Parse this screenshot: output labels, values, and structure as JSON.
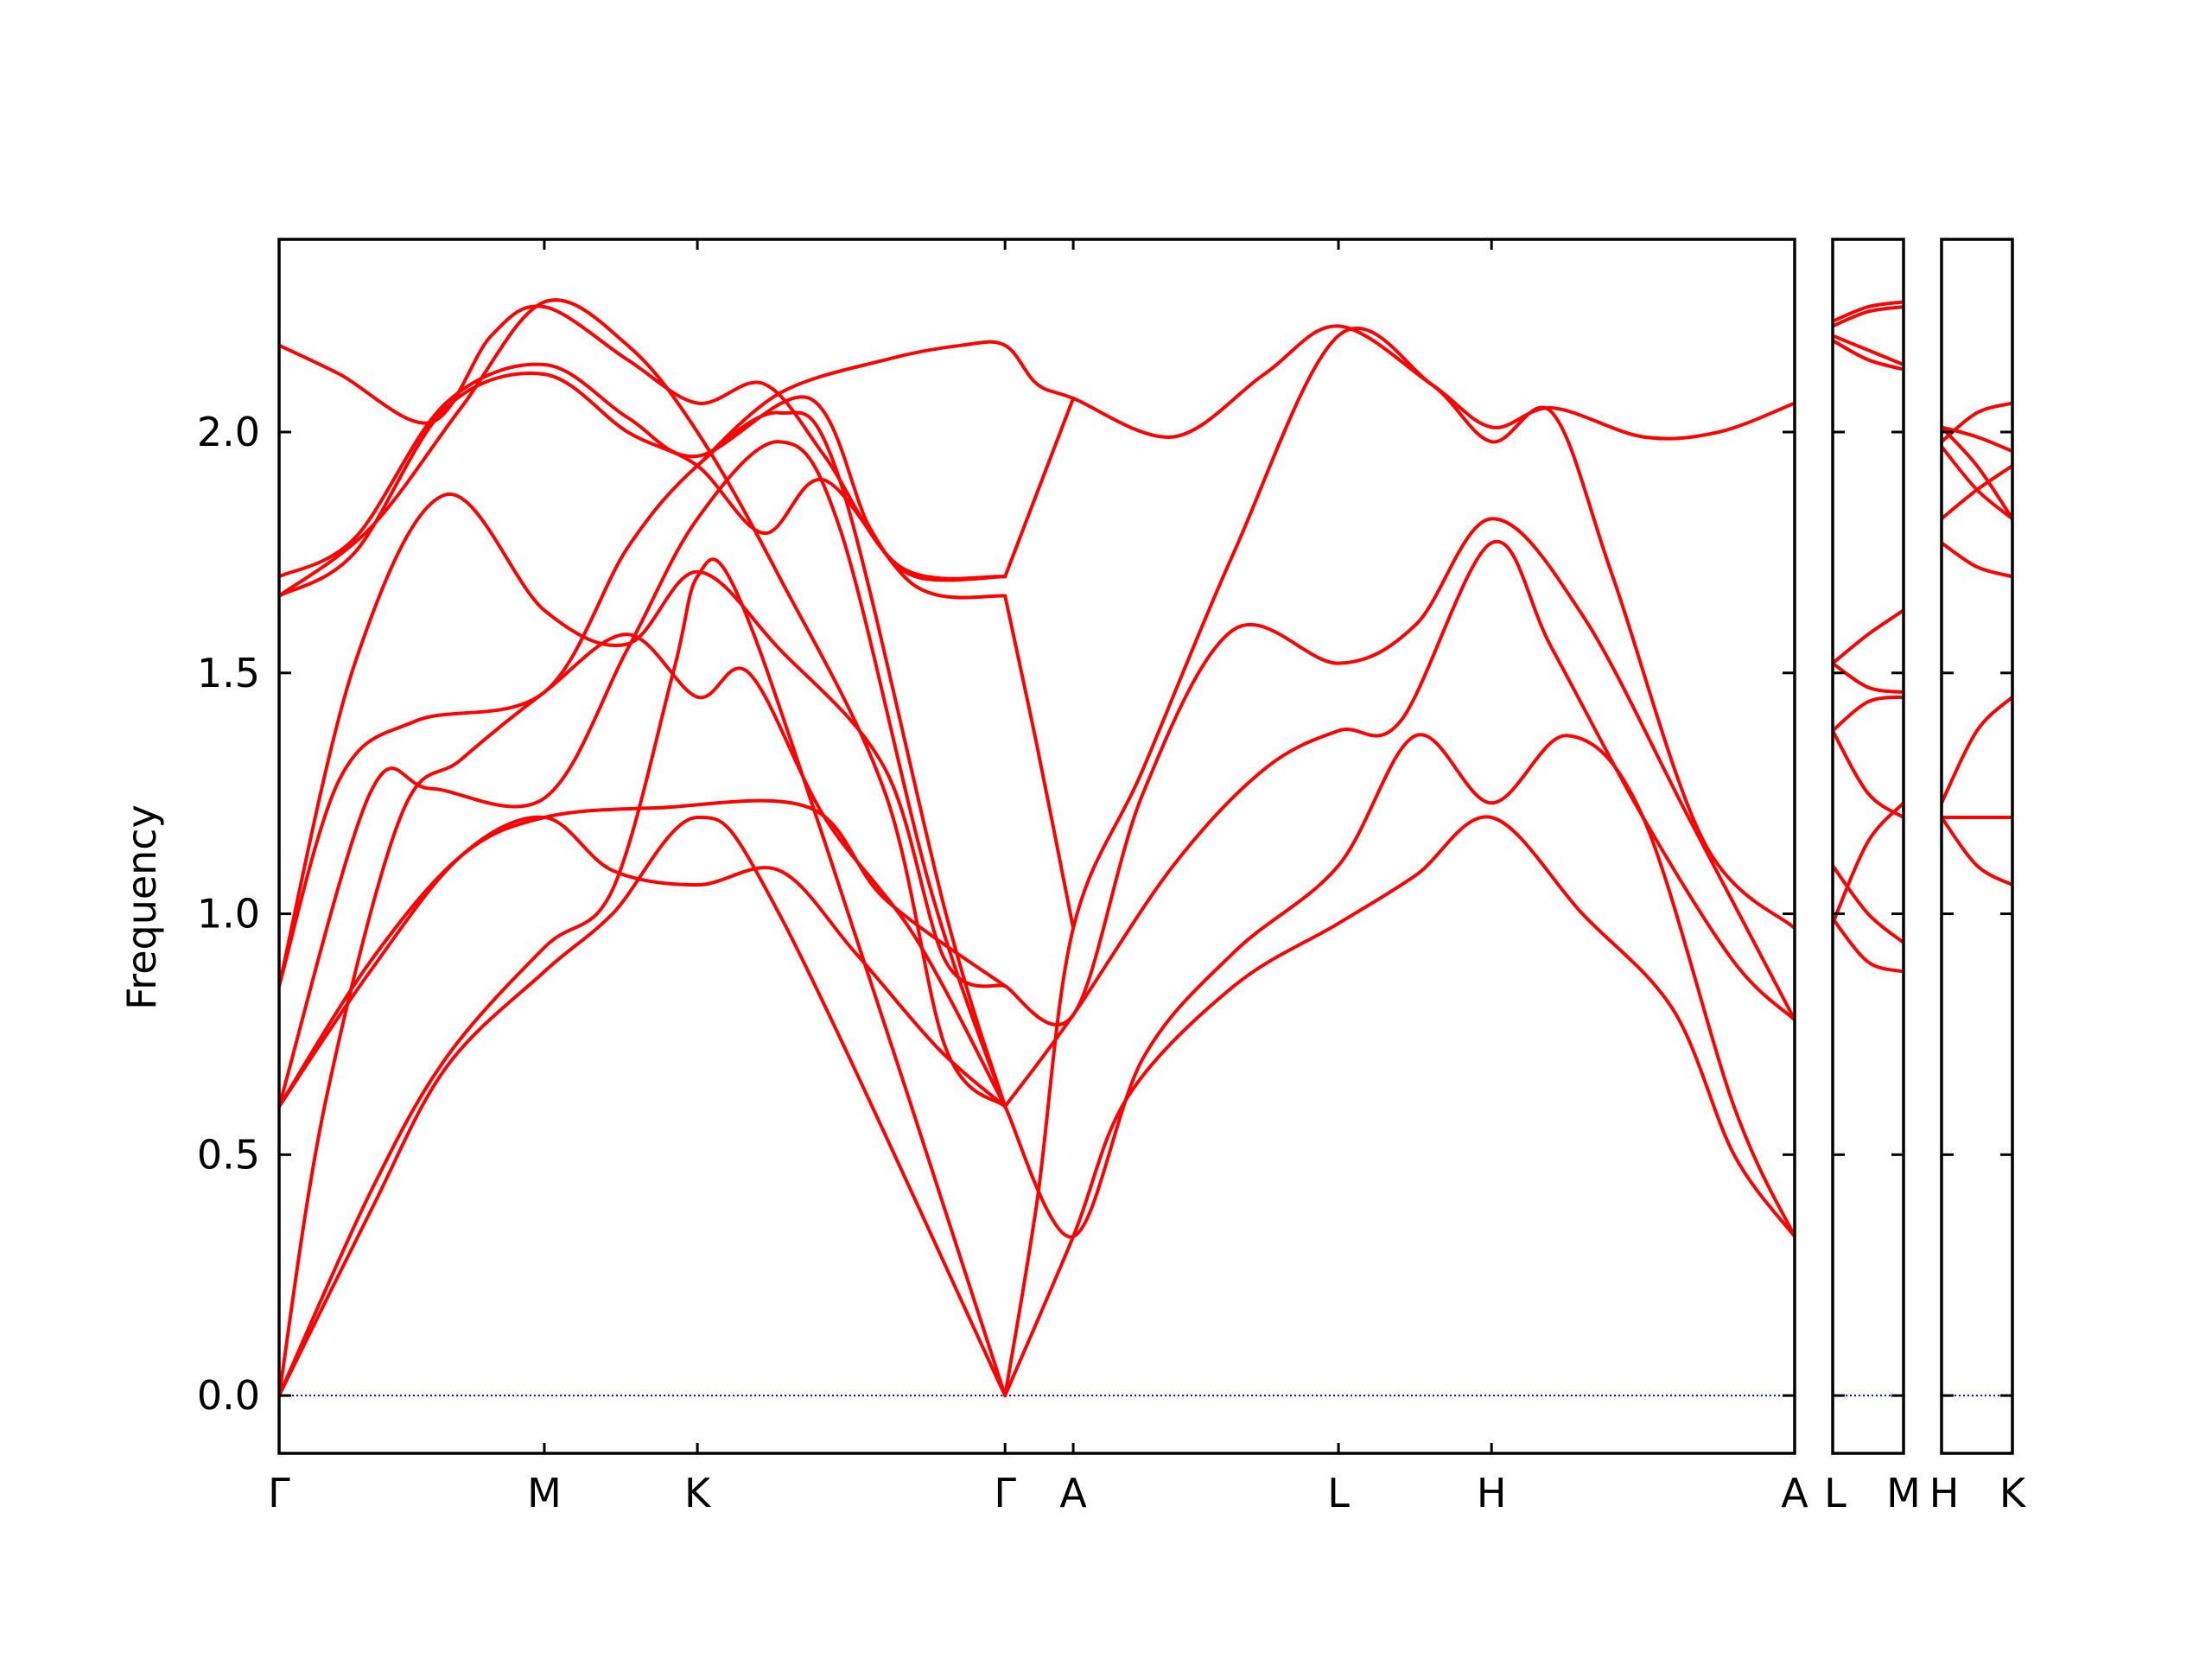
{
  "chart_data": {
    "type": "line",
    "ylabel": "Frequency",
    "ylim": [
      -0.12,
      2.4
    ],
    "yticks": [
      {
        "value": 0.0,
        "label": "0.0"
      },
      {
        "value": 0.5,
        "label": "0.5"
      },
      {
        "value": 1.0,
        "label": "1.0"
      },
      {
        "value": 1.5,
        "label": "1.5"
      },
      {
        "value": 2.0,
        "label": "2.0"
      }
    ],
    "zero_line_color": "#0000ff",
    "band_color": "#ff0000",
    "panels": [
      {
        "xlim": [
          0,
          10
        ],
        "x_tick_labels": [
          {
            "x": 0,
            "label": "Γ"
          },
          {
            "x": 1.75,
            "label": "M"
          },
          {
            "x": 2.76,
            "label": "K"
          },
          {
            "x": 4.79,
            "label": "Γ"
          },
          {
            "x": 5.24,
            "label": "A"
          },
          {
            "x": 6.99,
            "label": "L"
          },
          {
            "x": 8.0,
            "label": "H"
          },
          {
            "x": 10.0,
            "label": "A"
          }
        ],
        "bands": [
          [
            [
              0,
              0
            ],
            [
              0.6,
              0.38
            ],
            [
              1.1,
              0.68
            ],
            [
              1.75,
              0.88
            ],
            [
              2.2,
              1.0
            ],
            [
              2.76,
              1.2
            ],
            [
              3.3,
              1.0
            ],
            [
              4.79,
              0
            ]
          ],
          [
            [
              0,
              0
            ],
            [
              0.6,
              0.42
            ],
            [
              1.1,
              0.7
            ],
            [
              1.75,
              0.93
            ],
            [
              2.2,
              1.05
            ],
            [
              2.6,
              1.5
            ],
            [
              2.76,
              1.7
            ],
            [
              3.0,
              1.68
            ],
            [
              3.6,
              1.15
            ],
            [
              4.79,
              0
            ]
          ],
          [
            [
              0,
              0
            ],
            [
              0.3,
              0.6
            ],
            [
              0.8,
              1.2
            ],
            [
              1.2,
              1.32
            ],
            [
              1.75,
              1.46
            ],
            [
              2.3,
              1.58
            ],
            [
              2.76,
              1.45
            ],
            [
              3.1,
              1.5
            ],
            [
              3.6,
              1.2
            ],
            [
              4.2,
              0.95
            ],
            [
              4.79,
              0.6
            ]
          ],
          [
            [
              0,
              0.6
            ],
            [
              0.6,
              0.88
            ],
            [
              1.2,
              1.12
            ],
            [
              1.75,
              1.2
            ],
            [
              2.2,
              1.09
            ],
            [
              2.76,
              1.06
            ],
            [
              3.3,
              1.09
            ],
            [
              3.8,
              0.92
            ],
            [
              4.35,
              0.72
            ],
            [
              4.79,
              0.6
            ]
          ],
          [
            [
              0,
              0.6
            ],
            [
              0.6,
              0.9
            ],
            [
              1.2,
              1.12
            ],
            [
              1.75,
              1.2
            ],
            [
              2.5,
              1.22
            ],
            [
              3.5,
              1.22
            ],
            [
              4.0,
              1.03
            ],
            [
              4.79,
              0.85
            ]
          ],
          [
            [
              0,
              0.6
            ],
            [
              0.6,
              1.25
            ],
            [
              1.0,
              1.26
            ],
            [
              1.75,
              1.24
            ],
            [
              2.3,
              1.55
            ],
            [
              2.76,
              1.82
            ],
            [
              3.3,
              1.98
            ],
            [
              3.7,
              1.8
            ],
            [
              4.3,
              1.05
            ],
            [
              4.79,
              0.6
            ]
          ],
          [
            [
              0,
              0.85
            ],
            [
              0.4,
              1.28
            ],
            [
              0.9,
              1.4
            ],
            [
              1.75,
              1.46
            ],
            [
              2.3,
              1.76
            ],
            [
              2.76,
              1.93
            ],
            [
              3.3,
              2.04
            ],
            [
              3.7,
              1.9
            ],
            [
              4.4,
              1.0
            ],
            [
              4.79,
              0.6
            ]
          ],
          [
            [
              0,
              0.85
            ],
            [
              0.5,
              1.52
            ],
            [
              1.1,
              1.87
            ],
            [
              1.75,
              1.63
            ],
            [
              2.3,
              1.56
            ],
            [
              2.76,
              1.71
            ],
            [
              3.3,
              1.55
            ],
            [
              4.0,
              1.3
            ],
            [
              4.4,
              0.9
            ],
            [
              4.79,
              0.85
            ]
          ],
          [
            [
              0,
              1.66
            ],
            [
              0.5,
              1.75
            ],
            [
              1.1,
              2.05
            ],
            [
              1.75,
              2.12
            ],
            [
              2.3,
              2.0
            ],
            [
              2.76,
              1.93
            ],
            [
              3.2,
              1.79
            ],
            [
              3.6,
              1.9
            ],
            [
              4.2,
              1.68
            ],
            [
              4.79,
              1.66
            ]
          ],
          [
            [
              0,
              1.7
            ],
            [
              0.5,
              1.78
            ],
            [
              1.1,
              2.06
            ],
            [
              1.75,
              2.14
            ],
            [
              2.3,
              2.03
            ],
            [
              2.76,
              1.95
            ],
            [
              3.5,
              2.07
            ],
            [
              3.9,
              1.8
            ],
            [
              4.2,
              1.7
            ],
            [
              4.79,
              1.7
            ]
          ],
          [
            [
              0,
              2.18
            ],
            [
              0.4,
              2.12
            ],
            [
              1.0,
              2.02
            ],
            [
              1.4,
              2.2
            ],
            [
              1.75,
              2.26
            ],
            [
              2.3,
              2.15
            ],
            [
              2.76,
              2.06
            ],
            [
              3.2,
              2.1
            ],
            [
              3.6,
              1.95
            ],
            [
              4.1,
              1.72
            ],
            [
              4.79,
              1.7
            ]
          ],
          [
            [
              0,
              1.66
            ],
            [
              0.6,
              1.8
            ],
            [
              1.2,
              2.05
            ],
            [
              1.75,
              2.27
            ],
            [
              2.3,
              2.18
            ],
            [
              2.76,
              2.0
            ],
            [
              3.3,
              1.7
            ],
            [
              4.0,
              1.25
            ],
            [
              4.4,
              0.72
            ],
            [
              4.79,
              0.6
            ]
          ],
          [
            [
              2.76,
              1.93
            ],
            [
              3.3,
              2.08
            ],
            [
              4.0,
              2.15
            ],
            [
              4.5,
              2.18
            ],
            [
              4.79,
              2.18
            ],
            [
              5.0,
              2.1
            ],
            [
              5.24,
              2.07
            ],
            [
              5.9,
              1.99
            ],
            [
              6.5,
              2.12
            ],
            [
              6.99,
              2.22
            ],
            [
              7.6,
              2.1
            ],
            [
              8.0,
              2.01
            ],
            [
              8.4,
              2.05
            ],
            [
              9.0,
              1.99
            ],
            [
              9.5,
              2.0
            ],
            [
              10.0,
              2.06
            ]
          ],
          [
            [
              4.79,
              0
            ],
            [
              5.0,
              0.4
            ],
            [
              5.24,
              0.97
            ],
            [
              5.7,
              1.3
            ],
            [
              6.3,
              1.75
            ],
            [
              6.99,
              2.2
            ],
            [
              7.6,
              2.1
            ],
            [
              8.0,
              1.98
            ],
            [
              8.4,
              2.04
            ],
            [
              8.8,
              1.7
            ],
            [
              9.4,
              1.15
            ],
            [
              10.0,
              0.97
            ]
          ],
          [
            [
              4.79,
              1.7
            ],
            [
              5.24,
              2.07
            ]
          ],
          [
            [
              4.79,
              1.66
            ],
            [
              5.0,
              1.35
            ],
            [
              5.24,
              0.97
            ]
          ],
          [
            [
              4.79,
              0
            ],
            [
              5.24,
              0.33
            ],
            [
              5.6,
              0.62
            ],
            [
              6.3,
              0.85
            ],
            [
              6.99,
              0.98
            ],
            [
              7.5,
              1.08
            ],
            [
              8.0,
              1.2
            ],
            [
              8.6,
              1.0
            ],
            [
              9.2,
              0.8
            ],
            [
              9.6,
              0.5
            ],
            [
              10.0,
              0.33
            ]
          ],
          [
            [
              4.79,
              0.6
            ],
            [
              5.24,
              0.33
            ],
            [
              5.7,
              0.7
            ],
            [
              6.3,
              0.92
            ],
            [
              6.99,
              1.1
            ],
            [
              7.5,
              1.37
            ],
            [
              8.0,
              1.23
            ],
            [
              8.5,
              1.37
            ],
            [
              9.0,
              1.2
            ],
            [
              9.6,
              0.6
            ],
            [
              10.0,
              0.33
            ]
          ],
          [
            [
              4.79,
              0.6
            ],
            [
              5.24,
              0.79
            ],
            [
              5.9,
              1.1
            ],
            [
              6.5,
              1.3
            ],
            [
              6.99,
              1.38
            ],
            [
              7.4,
              1.4
            ],
            [
              8.0,
              1.77
            ],
            [
              8.4,
              1.55
            ],
            [
              9.0,
              1.2
            ],
            [
              9.6,
              0.9
            ],
            [
              10.0,
              0.78
            ]
          ],
          [
            [
              4.79,
              0.85
            ],
            [
              5.24,
              0.79
            ],
            [
              5.7,
              1.25
            ],
            [
              6.3,
              1.59
            ],
            [
              6.99,
              1.52
            ],
            [
              7.5,
              1.6
            ],
            [
              8.0,
              1.82
            ],
            [
              8.6,
              1.62
            ],
            [
              9.3,
              1.2
            ],
            [
              10.0,
              0.78
            ]
          ]
        ]
      },
      {
        "xlim": [
          0,
          1
        ],
        "x_tick_labels": [
          {
            "x": 0,
            "label": "L"
          },
          {
            "x": 1,
            "label": "M"
          }
        ],
        "bands": [
          [
            [
              0,
              0.98
            ],
            [
              0.5,
              1.15
            ],
            [
              1,
              1.23
            ]
          ],
          [
            [
              0,
              0.99
            ],
            [
              0.5,
              0.9
            ],
            [
              1,
              0.88
            ]
          ],
          [
            [
              0,
              1.1
            ],
            [
              0.5,
              1.0
            ],
            [
              1,
              0.94
            ]
          ],
          [
            [
              0,
              1.38
            ],
            [
              0.5,
              1.25
            ],
            [
              1,
              1.2
            ]
          ],
          [
            [
              0,
              1.38
            ],
            [
              0.5,
              1.44
            ],
            [
              1,
              1.45
            ]
          ],
          [
            [
              0,
              1.52
            ],
            [
              0.5,
              1.47
            ],
            [
              1,
              1.46
            ]
          ],
          [
            [
              0,
              1.52
            ],
            [
              0.5,
              1.58
            ],
            [
              1,
              1.63
            ]
          ],
          [
            [
              0,
              2.19
            ],
            [
              0.5,
              2.15
            ],
            [
              1,
              2.13
            ]
          ],
          [
            [
              0,
              2.2
            ],
            [
              0.5,
              2.17
            ],
            [
              1,
              2.14
            ]
          ],
          [
            [
              0,
              2.22
            ],
            [
              0.5,
              2.25
            ],
            [
              1,
              2.26
            ]
          ],
          [
            [
              0,
              2.23
            ],
            [
              0.5,
              2.26
            ],
            [
              1,
              2.27
            ]
          ]
        ]
      },
      {
        "xlim": [
          0,
          1
        ],
        "x_tick_labels": [
          {
            "x": 0,
            "label": "H"
          },
          {
            "x": 1,
            "label": "K"
          }
        ],
        "bands": [
          [
            [
              0,
              1.2
            ],
            [
              0.5,
              1.1
            ],
            [
              1,
              1.06
            ]
          ],
          [
            [
              0,
              1.2
            ],
            [
              0.5,
              1.2
            ],
            [
              1,
              1.2
            ]
          ],
          [
            [
              0,
              1.23
            ],
            [
              0.5,
              1.38
            ],
            [
              1,
              1.45
            ]
          ],
          [
            [
              0,
              1.77
            ],
            [
              0.5,
              1.72
            ],
            [
              1,
              1.7
            ]
          ],
          [
            [
              0,
              1.82
            ],
            [
              0.5,
              1.88
            ],
            [
              1,
              1.93
            ]
          ],
          [
            [
              0,
              1.97
            ],
            [
              0.5,
              1.88
            ],
            [
              1,
              1.82
            ]
          ],
          [
            [
              0,
              2.01
            ],
            [
              0.5,
              1.93
            ],
            [
              1,
              1.82
            ]
          ],
          [
            [
              0,
              1.98
            ],
            [
              0.5,
              2.04
            ],
            [
              1,
              2.06
            ]
          ],
          [
            [
              0,
              2.01
            ],
            [
              0.5,
              1.99
            ],
            [
              1,
              1.96
            ]
          ]
        ]
      }
    ]
  }
}
